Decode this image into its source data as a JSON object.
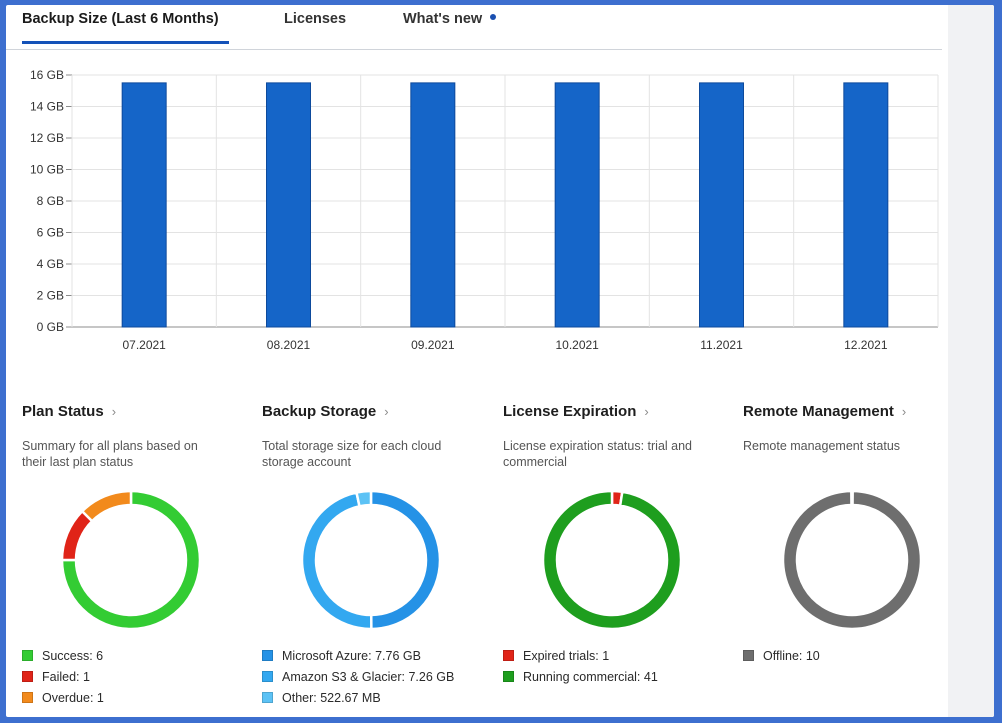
{
  "tabs": [
    {
      "label": "Backup Size (Last 6 Months)",
      "active": true
    },
    {
      "label": "Licenses",
      "active": false
    },
    {
      "label": "What's new",
      "active": false,
      "has_dot": true
    }
  ],
  "chart_data": {
    "type": "bar",
    "title": "",
    "xlabel": "",
    "ylabel": "",
    "categories": [
      "07.2021",
      "08.2021",
      "09.2021",
      "10.2021",
      "11.2021",
      "12.2021"
    ],
    "values": [
      15.5,
      15.5,
      15.5,
      15.5,
      15.5,
      15.5
    ],
    "ylim": [
      0,
      16
    ],
    "yticks": [
      "0 GB",
      "2 GB",
      "4 GB",
      "6 GB",
      "8 GB",
      "10 GB",
      "12 GB",
      "14 GB",
      "16 GB"
    ],
    "ytick_values": [
      0,
      2,
      4,
      6,
      8,
      10,
      12,
      14,
      16
    ],
    "unit": "GB",
    "grid": true,
    "bar_color": "#1565c8"
  },
  "widgets": [
    {
      "title": "Plan Status",
      "chevron": "›",
      "desc": "Summary for all plans based on their last plan status",
      "legend": [
        {
          "label": "Success: 6",
          "value": 6,
          "color": "#33cc33"
        },
        {
          "label": "Failed: 1",
          "value": 1,
          "color": "#e02418"
        },
        {
          "label": "Overdue: 1",
          "value": 1,
          "color": "#f28a1c"
        }
      ]
    },
    {
      "title": "Backup Storage",
      "chevron": "›",
      "desc": "Total storage size for each cloud storage account",
      "legend": [
        {
          "label": "Microsoft Azure: 7.76 GB",
          "value": 7.76,
          "color": "#2592e6"
        },
        {
          "label": "Amazon S3 & Glacier: 7.26 GB",
          "value": 7.26,
          "color": "#33a8f0"
        },
        {
          "label": "Other: 522.67 MB",
          "value": 0.52267,
          "color": "#5cc2f5"
        }
      ]
    },
    {
      "title": "License Expiration",
      "chevron": "›",
      "desc": "License expiration status: trial and commercial",
      "legend": [
        {
          "label": "Expired trials: 1",
          "value": 1,
          "color": "#e02418"
        },
        {
          "label": "Running commercial: 41",
          "value": 41,
          "color": "#1e9e1e"
        }
      ]
    },
    {
      "title": "Remote Management",
      "chevron": "›",
      "desc": "Remote management status",
      "legend": [
        {
          "label": "Offline: 10",
          "value": 10,
          "color": "#6e6e6e"
        }
      ]
    }
  ]
}
